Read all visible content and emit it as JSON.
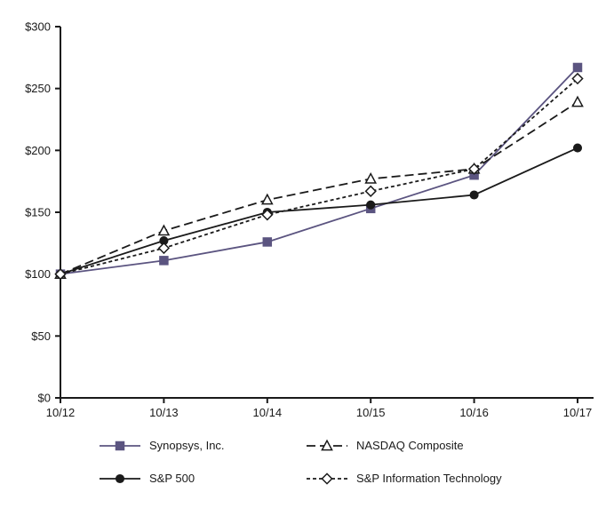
{
  "chart_data": {
    "type": "line",
    "title": "",
    "xlabel": "",
    "ylabel": "",
    "categories": [
      "10/12",
      "10/13",
      "10/14",
      "10/15",
      "10/16",
      "10/17"
    ],
    "ylim": [
      0,
      300
    ],
    "y_ticks": [
      0,
      50,
      100,
      150,
      200,
      250,
      300
    ],
    "y_tick_labels": [
      "$0",
      "$50",
      "$100",
      "$150",
      "$200",
      "$250",
      "$300"
    ],
    "grid": "off",
    "legend_position": "bottom",
    "series": [
      {
        "name": "Synopsys, Inc.",
        "values": [
          100,
          111,
          126,
          153,
          180,
          267
        ],
        "color": "#5b5480",
        "dash": "none",
        "marker": "square",
        "marker_fill": "filled"
      },
      {
        "name": "NASDAQ Composite",
        "values": [
          100,
          135,
          160,
          177,
          185,
          239
        ],
        "color": "#1a1a1a",
        "dash": "10,5",
        "marker": "triangle",
        "marker_fill": "open"
      },
      {
        "name": "S&P 500",
        "values": [
          100,
          127,
          150,
          156,
          164,
          202
        ],
        "color": "#1a1a1a",
        "dash": "none",
        "marker": "circle",
        "marker_fill": "filled"
      },
      {
        "name": "S&P Information Technology",
        "values": [
          100,
          121,
          148,
          167,
          185,
          258
        ],
        "color": "#1a1a1a",
        "dash": "4,3",
        "marker": "diamond",
        "marker_fill": "open"
      }
    ],
    "colors": {
      "axis": "#1a1a1a",
      "text": "#1a1a1a",
      "background": "#ffffff",
      "synopsys_accent": "#5b5480"
    }
  }
}
